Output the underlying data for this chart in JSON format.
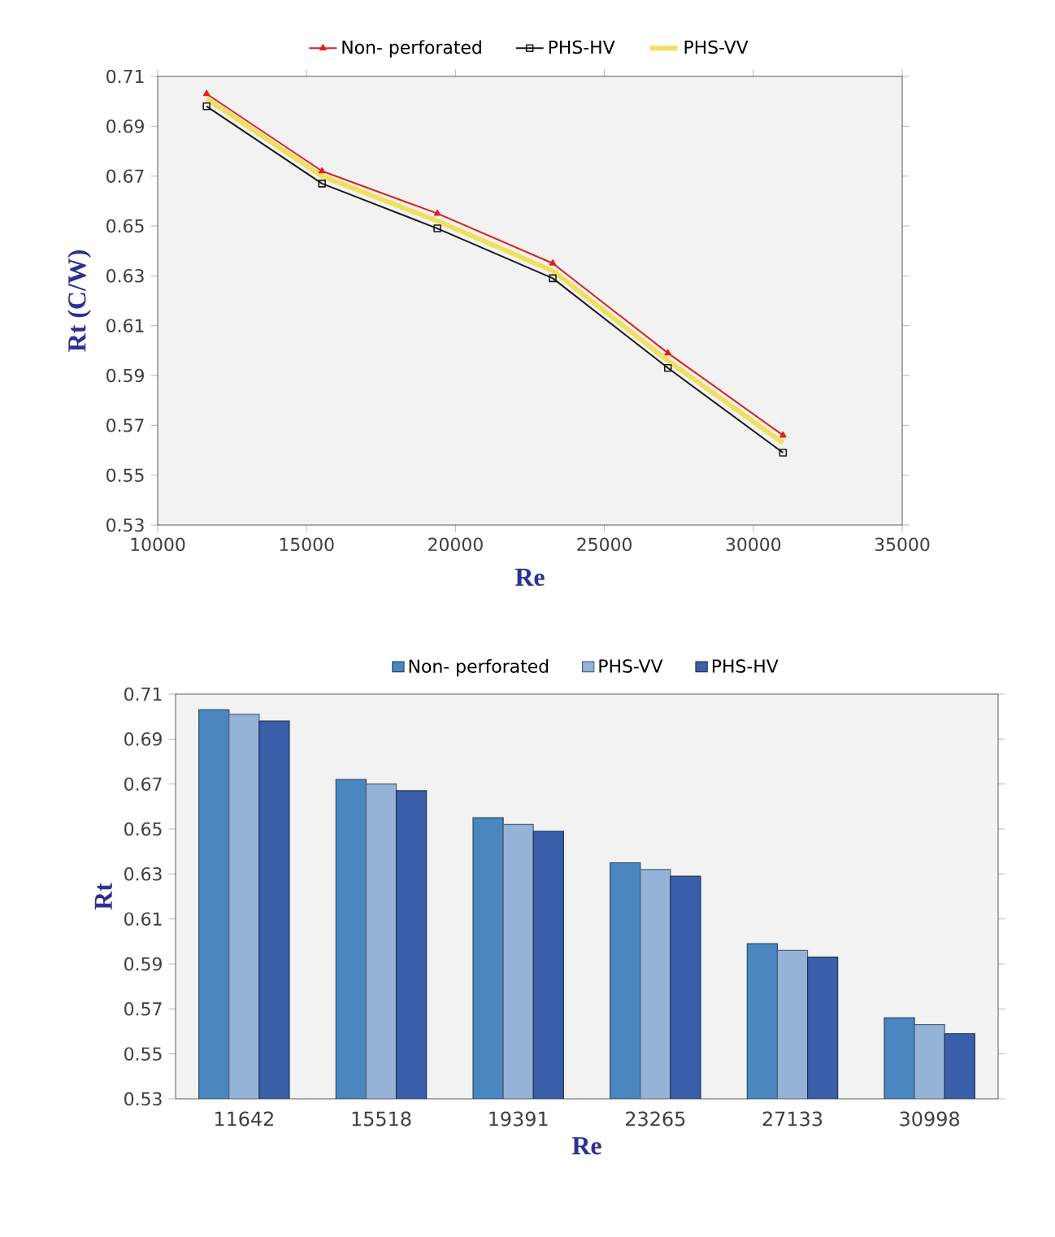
{
  "chart_data": [
    {
      "type": "line",
      "xlabel": "Re",
      "ylabel": "Rt (C/W)",
      "x": [
        11642,
        15518,
        19391,
        23265,
        27133,
        30998
      ],
      "series": [
        {
          "name": "Non- perforated",
          "color": "#e0201b",
          "marker": "triangle",
          "values": [
            0.703,
            0.672,
            0.655,
            0.635,
            0.599,
            0.566
          ]
        },
        {
          "name": "PHS-HV",
          "color": "#1a1a1a",
          "marker": "square",
          "values": [
            0.698,
            0.667,
            0.649,
            0.629,
            0.593,
            0.559
          ]
        },
        {
          "name": "PHS-VV",
          "color": "#f0e060",
          "marker": "none",
          "values": [
            0.701,
            0.67,
            0.652,
            0.632,
            0.596,
            0.563
          ]
        }
      ],
      "xlim": [
        10000,
        35000
      ],
      "xticks": [
        10000,
        15000,
        20000,
        25000,
        30000,
        35000
      ],
      "ylim": [
        0.53,
        0.71
      ],
      "yticks": [
        0.53,
        0.55,
        0.57,
        0.59,
        0.61,
        0.63,
        0.65,
        0.67,
        0.69,
        0.71
      ],
      "grid": false,
      "legend": "top",
      "line_style": "solid"
    },
    {
      "type": "bar",
      "xlabel": "Re",
      "ylabel": "Rt",
      "categories": [
        "11642",
        "15518",
        "19391",
        "23265",
        "27133",
        "30998"
      ],
      "series": [
        {
          "name": "Non- perforated",
          "color": "#4a86c0",
          "values": [
            0.703,
            0.672,
            0.655,
            0.635,
            0.599,
            0.566
          ]
        },
        {
          "name": "PHS-VV",
          "color": "#95b3d7",
          "values": [
            0.701,
            0.67,
            0.652,
            0.632,
            0.596,
            0.563
          ]
        },
        {
          "name": "PHS-HV",
          "color": "#3a5ea8",
          "values": [
            0.698,
            0.667,
            0.649,
            0.629,
            0.593,
            0.559
          ]
        }
      ],
      "ylim": [
        0.53,
        0.71
      ],
      "yticks": [
        0.53,
        0.55,
        0.57,
        0.59,
        0.61,
        0.63,
        0.65,
        0.67,
        0.69,
        0.71
      ],
      "grid": false,
      "legend": "top"
    }
  ]
}
